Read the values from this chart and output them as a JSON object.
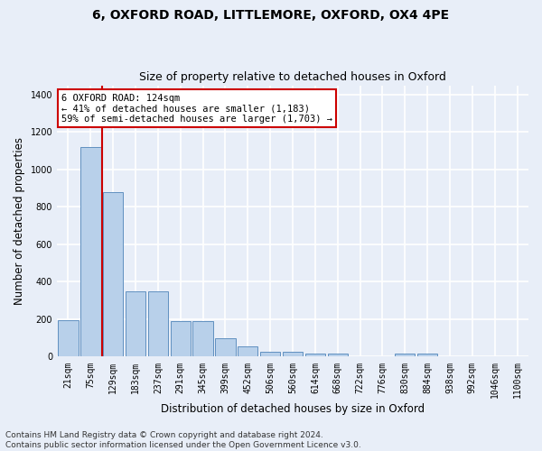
{
  "title": "6, OXFORD ROAD, LITTLEMORE, OXFORD, OX4 4PE",
  "subtitle": "Size of property relative to detached houses in Oxford",
  "xlabel": "Distribution of detached houses by size in Oxford",
  "ylabel": "Number of detached properties",
  "bar_labels": [
    "21sqm",
    "75sqm",
    "129sqm",
    "183sqm",
    "237sqm",
    "291sqm",
    "345sqm",
    "399sqm",
    "452sqm",
    "506sqm",
    "560sqm",
    "614sqm",
    "668sqm",
    "722sqm",
    "776sqm",
    "830sqm",
    "884sqm",
    "938sqm",
    "992sqm",
    "1046sqm",
    "1100sqm"
  ],
  "bar_heights": [
    195,
    1120,
    880,
    350,
    350,
    190,
    190,
    100,
    55,
    25,
    25,
    15,
    15,
    0,
    0,
    15,
    15,
    0,
    0,
    0,
    0
  ],
  "bar_color": "#b8d0ea",
  "bar_edge_color": "#6090c0",
  "vline_color": "#cc0000",
  "annotation_text": "6 OXFORD ROAD: 124sqm\n← 41% of detached houses are smaller (1,183)\n59% of semi-detached houses are larger (1,703) →",
  "annotation_box_color": "#ffffff",
  "annotation_box_edge": "#cc0000",
  "ylim": [
    0,
    1450
  ],
  "yticks": [
    0,
    200,
    400,
    600,
    800,
    1000,
    1200,
    1400
  ],
  "footnote": "Contains HM Land Registry data © Crown copyright and database right 2024.\nContains public sector information licensed under the Open Government Licence v3.0.",
  "bg_color": "#e8eef8",
  "plot_bg_color": "#e8eef8",
  "grid_color": "#ffffff",
  "title_fontsize": 10,
  "subtitle_fontsize": 9,
  "axis_label_fontsize": 8.5,
  "tick_fontsize": 7,
  "footnote_fontsize": 6.5
}
